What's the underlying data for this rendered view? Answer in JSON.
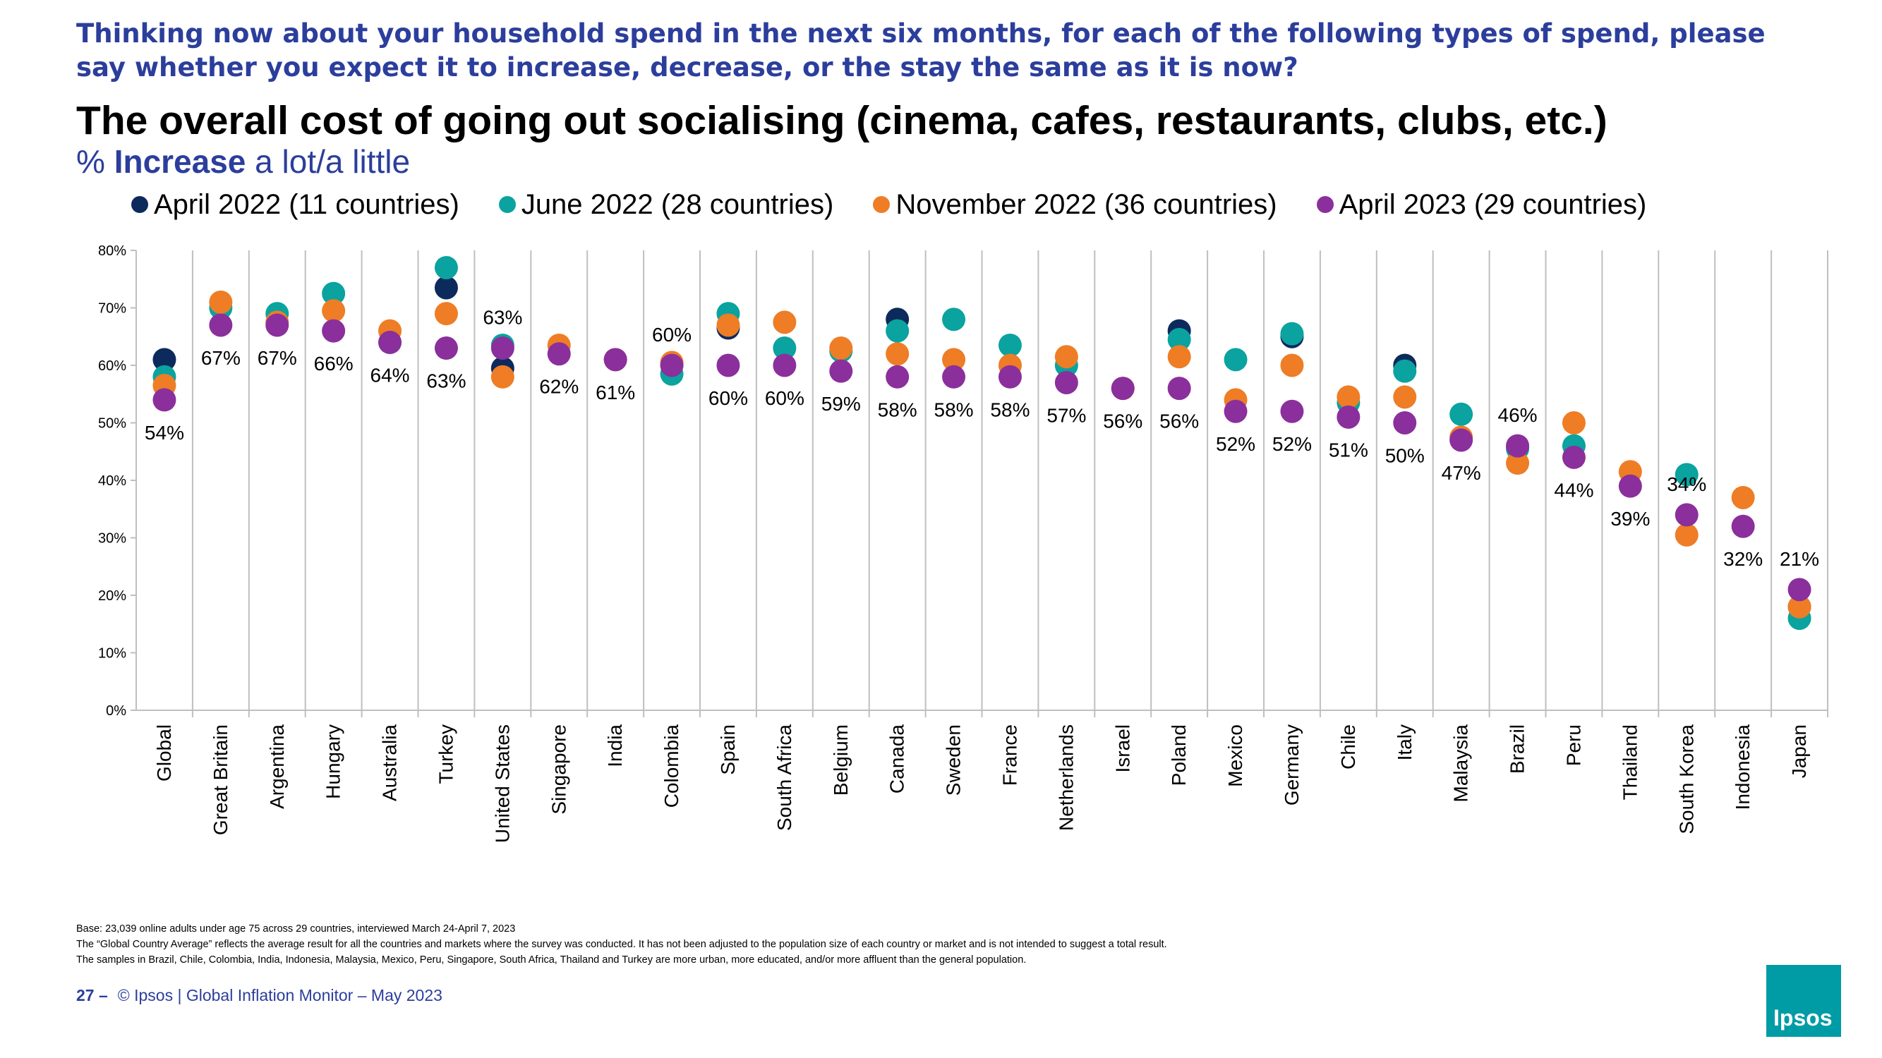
{
  "header": {
    "question": "Thinking now about your household spend in the next six months, for each of the following types of spend, please say whether you expect it to increase, decrease, or the stay the same as it is now?",
    "title": "The overall cost of going out socialising (cinema, cafes, restaurants, clubs, etc.)",
    "subtitle_prefix": "% ",
    "subtitle_bold": "Increase",
    "subtitle_suffix": " a lot/a little"
  },
  "colors": {
    "april_2022": "#0d2a5c",
    "june_2022": "#0aa39f",
    "november_2022": "#ee7d25",
    "april_2023": "#8b2f9c",
    "brand_blue": "#2c3e9c",
    "logo_teal": "#009ca6"
  },
  "chart_data": {
    "type": "scatter",
    "title": "The overall cost of going out socialising (cinema, cafes, restaurants, clubs, etc.)",
    "ylabel": "% Increase a lot/a little",
    "ylim": [
      0,
      80
    ],
    "yticks": [
      "0%",
      "10%",
      "20%",
      "30%",
      "40%",
      "50%",
      "60%",
      "70%",
      "80%"
    ],
    "categories": [
      "Global",
      "Great Britain",
      "Argentina",
      "Hungary",
      "Australia",
      "Turkey",
      "United States",
      "Singapore",
      "India",
      "Colombia",
      "Spain",
      "South Africa",
      "Belgium",
      "Canada",
      "Sweden",
      "France",
      "Netherlands",
      "Israel",
      "Poland",
      "Mexico",
      "Germany",
      "Chile",
      "Italy",
      "Malaysia",
      "Brazil",
      "Peru",
      "Thailand",
      "South Korea",
      "Indonesia",
      "Japan"
    ],
    "series": [
      {
        "name": "April 2022 (11 countries)",
        "color_key": "april_2022",
        "values": [
          61,
          null,
          null,
          null,
          null,
          73.5,
          59.5,
          null,
          null,
          null,
          66.5,
          null,
          null,
          68,
          null,
          null,
          null,
          null,
          66,
          null,
          65,
          null,
          60,
          null,
          null,
          null,
          null,
          null,
          null,
          18
        ]
      },
      {
        "name": "June 2022 (28 countries)",
        "color_key": "june_2022",
        "values": [
          58,
          70,
          69,
          72.5,
          64,
          77,
          63.5,
          null,
          null,
          58.5,
          69,
          63,
          62.5,
          66,
          68,
          63.5,
          60,
          null,
          64.5,
          61,
          65.5,
          53.5,
          59,
          51.5,
          45.5,
          46,
          null,
          41,
          null,
          16
        ]
      },
      {
        "name": "November 2022 (36 countries)",
        "color_key": "november_2022",
        "values": [
          56.5,
          71,
          67.5,
          69.5,
          66,
          69,
          58,
          63.5,
          61,
          60.5,
          67,
          67.5,
          63,
          62,
          61,
          60,
          61.5,
          56,
          61.5,
          54,
          60,
          54.5,
          54.5,
          47.5,
          43,
          50,
          41.5,
          30.5,
          37,
          18
        ]
      },
      {
        "name": "April 2023 (29 countries)",
        "color_key": "april_2023",
        "values": [
          54,
          67,
          67,
          66,
          64,
          63,
          63,
          62,
          61,
          60,
          60,
          60,
          59,
          58,
          58,
          58,
          57,
          56,
          56,
          52,
          52,
          51,
          50,
          47,
          46,
          44,
          39,
          34,
          32,
          21
        ]
      }
    ],
    "data_labels": [
      "54%",
      "67%",
      "67%",
      "66%",
      "64%",
      "63%",
      "63%",
      "62%",
      "61%",
      "60%",
      "60%",
      "60%",
      "59%",
      "58%",
      "58%",
      "58%",
      "57%",
      "56%",
      "56%",
      "52%",
      "52%",
      "51%",
      "50%",
      "47%",
      "46%",
      "44%",
      "39%",
      "34%",
      "32%",
      "21%"
    ],
    "data_label_positions": [
      "below",
      "below",
      "below",
      "below",
      "below",
      "below",
      "above",
      "below",
      "below",
      "above",
      "below",
      "below",
      "below",
      "below",
      "below",
      "below",
      "below",
      "below",
      "below",
      "below",
      "below",
      "below",
      "below",
      "below",
      "above",
      "below",
      "below",
      "above",
      "below",
      "above"
    ],
    "legend_position": "top"
  },
  "footnotes": [
    "Base: 23,039 online adults under age 75 across 29 countries, interviewed March 24-April 7, 2023",
    "The “Global Country Average” reflects the average result for all the countries and markets where the survey was conducted. It has not been adjusted to the population size of each country or market and is not intended to suggest a total result.",
    "The samples in Brazil, Chile, Colombia, India, Indonesia, Malaysia, Mexico, Peru, Singapore, South Africa, Thailand and Turkey are more urban, more educated, and/or more affluent than the general population."
  ],
  "footer": {
    "page_number": "27 –",
    "text": "© Ipsos | Global Inflation Monitor – May 2023"
  },
  "logo": {
    "text": "Ipsos"
  }
}
